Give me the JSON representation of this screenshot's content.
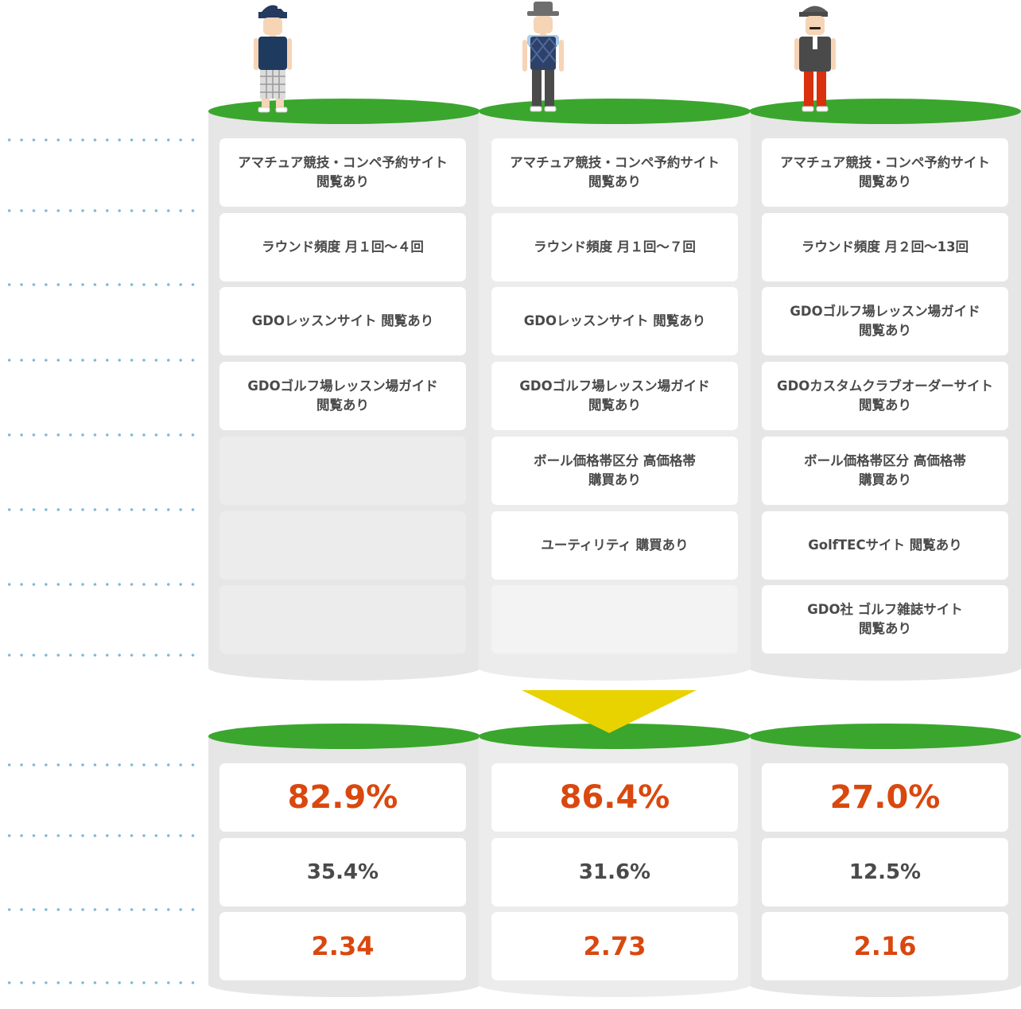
{
  "personas": [
    {
      "icon": "golfer-cap-plaid-pants-icon",
      "attributes": [
        "アマチュア競技・コンペ予約サイト\n閲覧あり",
        "ラウンド頻度 月１回〜４回",
        "GDOレッスンサイト 閲覧あり",
        "GDOゴルフ場レッスン場ガイド\n閲覧あり",
        "",
        "",
        ""
      ],
      "metrics": [
        "82.9%",
        "35.4%",
        "2.34"
      ]
    },
    {
      "icon": "golfer-hat-argyle-vest-icon",
      "attributes": [
        "アマチュア競技・コンペ予約サイト\n閲覧あり",
        "ラウンド頻度 月１回〜７回",
        "GDOレッスンサイト 閲覧あり",
        "GDOゴルフ場レッスン場ガイド\n閲覧あり",
        "ボール価格帯区分 高価格帯\n購買あり",
        "ユーティリティ 購買あり",
        ""
      ],
      "metrics": [
        "86.4%",
        "31.6%",
        "2.73"
      ]
    },
    {
      "icon": "golfer-cap-mustache-red-pants-icon",
      "attributes": [
        "アマチュア競技・コンペ予約サイト\n閲覧あり",
        "ラウンド頻度 月２回〜13回",
        "GDOゴルフ場レッスン場ガイド\n閲覧あり",
        "GDOカスタムクラブオーダーサイト\n閲覧あり",
        "ボール価格帯区分 高価格帯\n購買あり",
        "GolfTECサイト 閲覧あり",
        "GDO社 ゴルフ雑誌サイト\n閲覧あり"
      ],
      "metrics": [
        "27.0%",
        "12.5%",
        "2.16"
      ]
    }
  ],
  "colors": {
    "top": "#3aa62d",
    "arrow": "#e8d200",
    "highlight": "#d9480f",
    "dots": "#7ab8d8"
  }
}
